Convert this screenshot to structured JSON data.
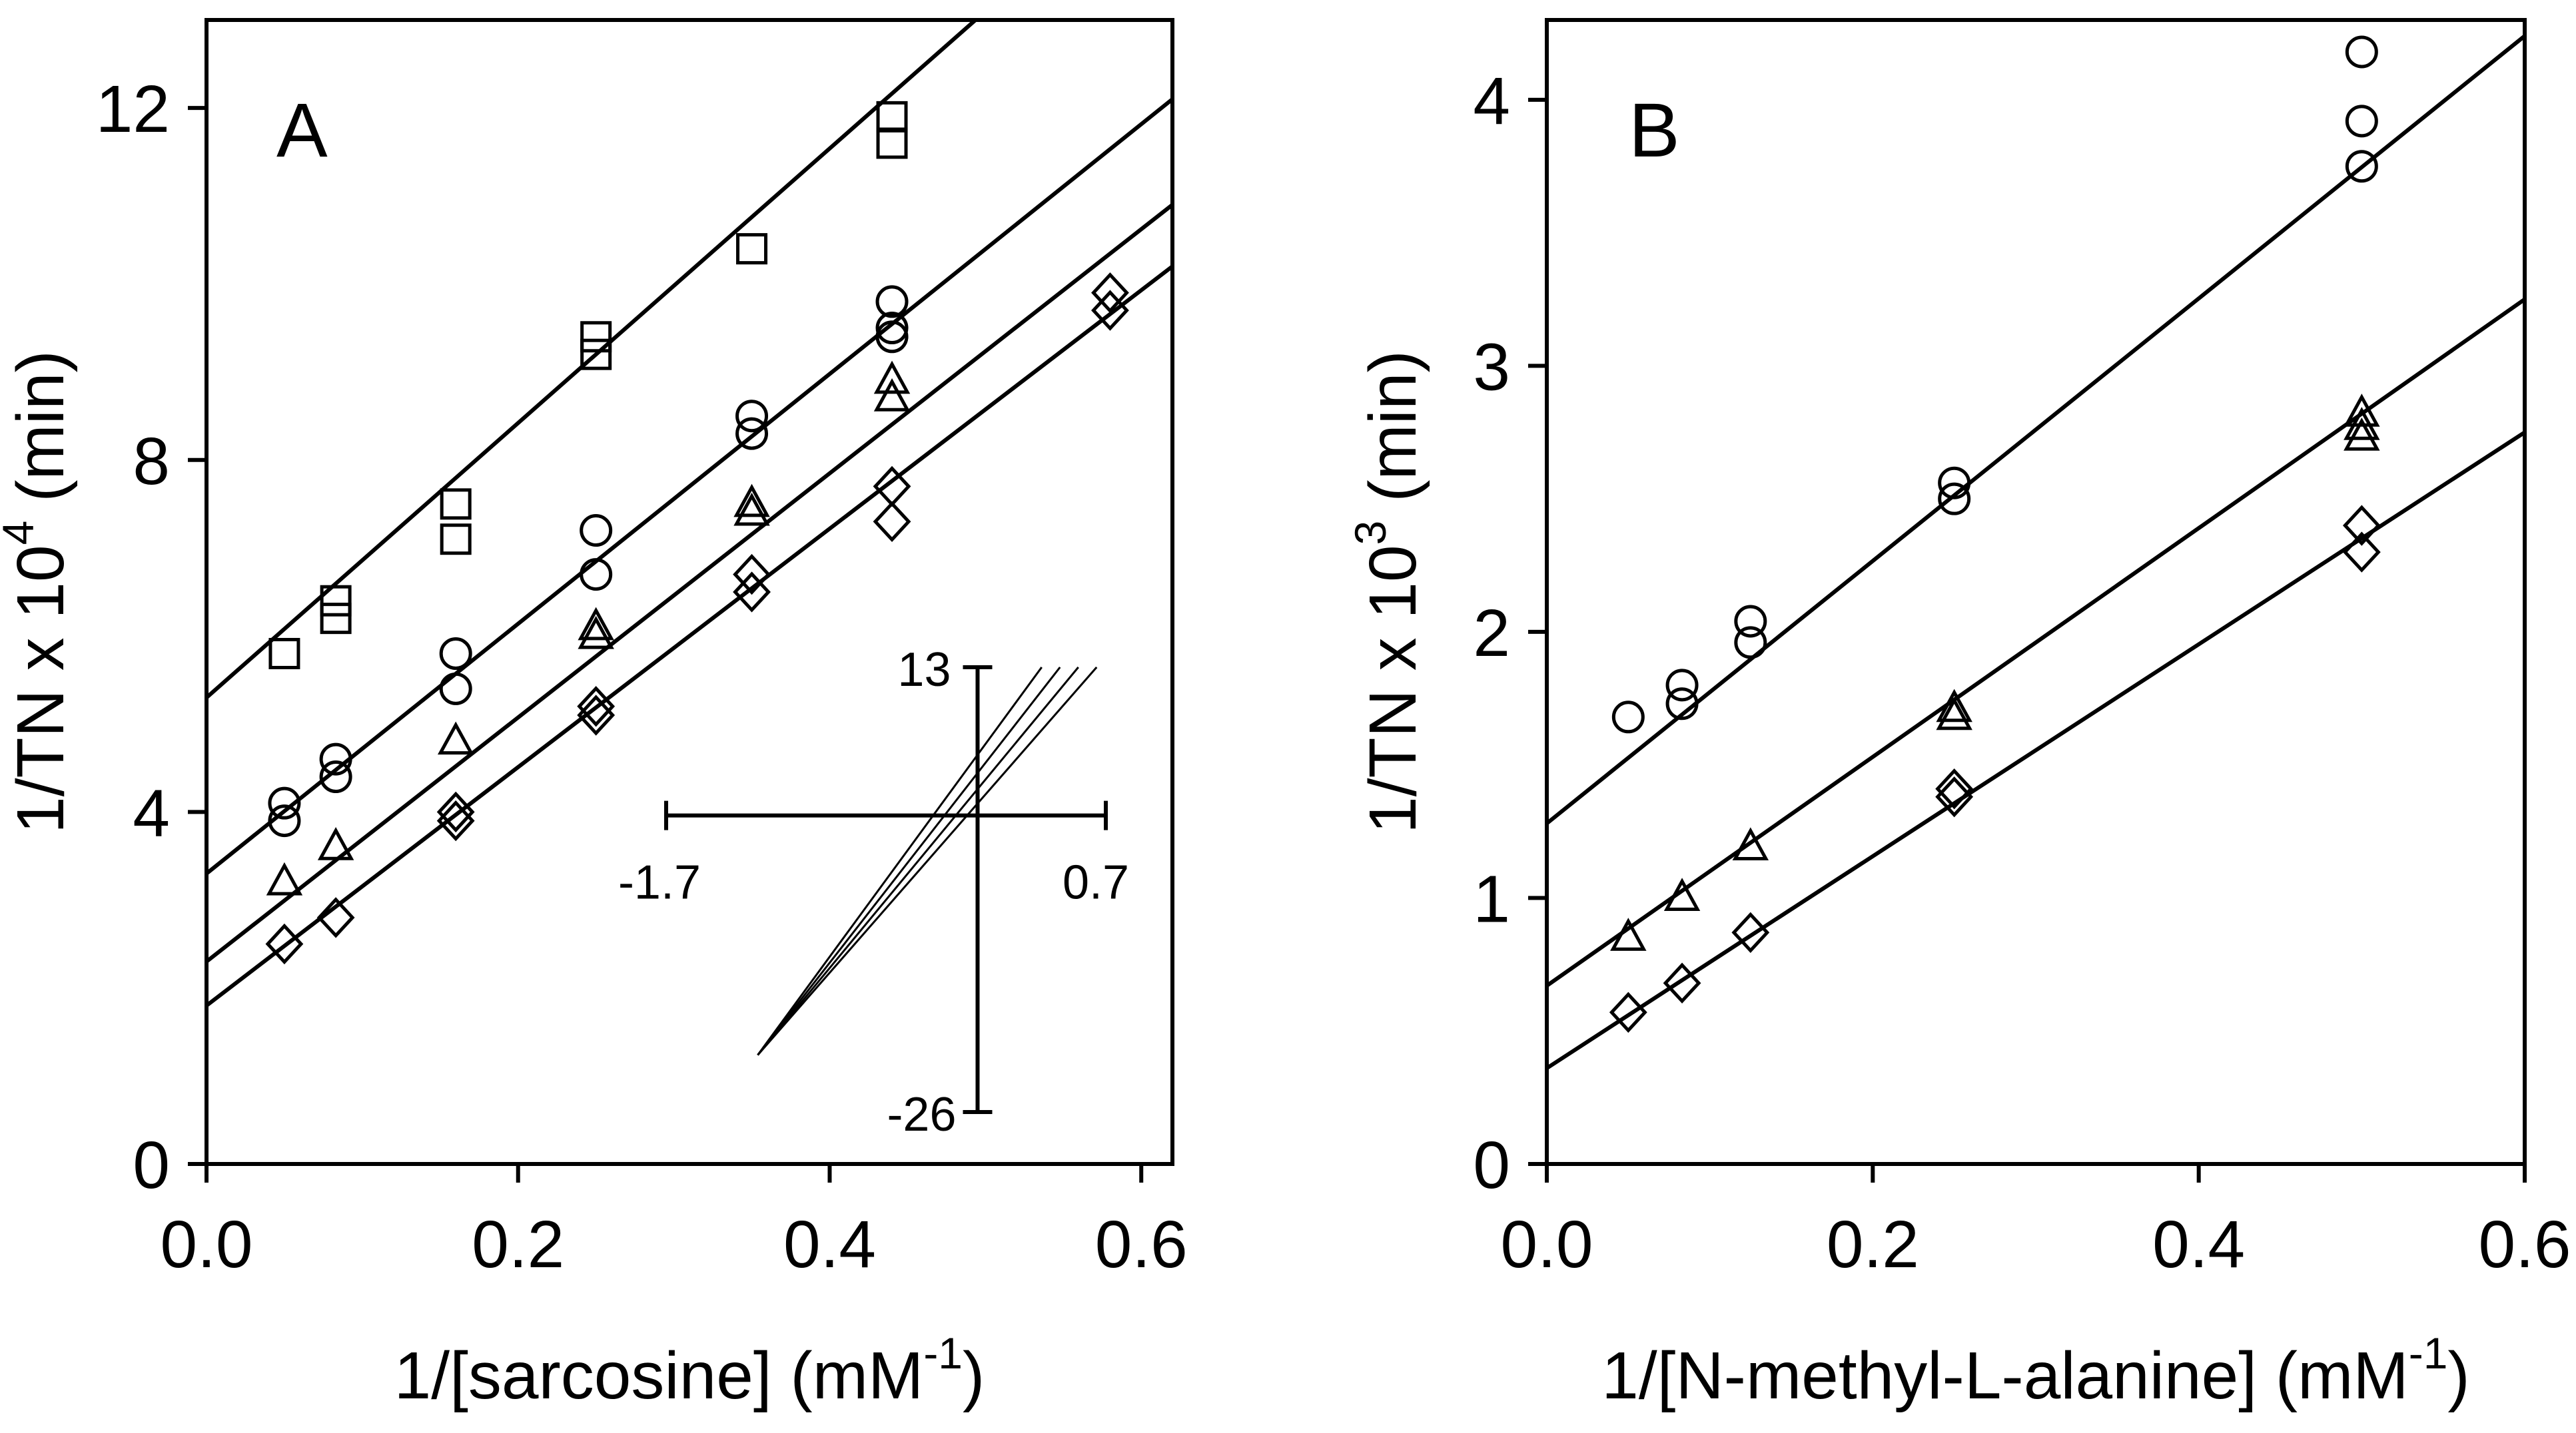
{
  "chart_data": [
    {
      "type": "scatter",
      "panel_label": "A",
      "xlabel": "1/[sarcosine] (mM",
      "xlabel_sup": "-1",
      "xlabel_end": ")",
      "ylabel": "1/TN x 10",
      "ylabel_sup": "4",
      "ylabel_end": " (min)",
      "xlim": [
        0,
        0.62
      ],
      "ylim": [
        0,
        13
      ],
      "xticks": [
        0.0,
        0.2,
        0.4,
        0.6
      ],
      "xtick_labels": [
        "0.0",
        "0.2",
        "0.4",
        "0.6"
      ],
      "yticks": [
        0,
        4,
        8,
        12
      ],
      "ytick_labels": [
        "0",
        "4",
        "8",
        "12"
      ],
      "grid": false,
      "series": [
        {
          "marker": "square",
          "points": [
            [
              0.05,
              5.8
            ],
            [
              0.083,
              6.4
            ],
            [
              0.083,
              6.2
            ],
            [
              0.16,
              7.5
            ],
            [
              0.16,
              7.1
            ],
            [
              0.25,
              9.4
            ],
            [
              0.25,
              9.2
            ],
            [
              0.35,
              10.4
            ],
            [
              0.44,
              11.9
            ],
            [
              0.44,
              11.6
            ]
          ],
          "line": [
            [
              0.0,
              5.3
            ],
            [
              0.5,
              13.1
            ]
          ]
        },
        {
          "marker": "circle",
          "points": [
            [
              0.05,
              4.1
            ],
            [
              0.05,
              3.9
            ],
            [
              0.083,
              4.6
            ],
            [
              0.083,
              4.4
            ],
            [
              0.16,
              5.8
            ],
            [
              0.16,
              5.4
            ],
            [
              0.25,
              7.2
            ],
            [
              0.25,
              6.7
            ],
            [
              0.35,
              8.5
            ],
            [
              0.35,
              8.3
            ],
            [
              0.44,
              9.8
            ],
            [
              0.44,
              9.5
            ],
            [
              0.44,
              9.4
            ]
          ],
          "line": [
            [
              0.0,
              3.3
            ],
            [
              0.62,
              12.1
            ]
          ]
        },
        {
          "marker": "triangle",
          "points": [
            [
              0.05,
              3.2
            ],
            [
              0.083,
              3.6
            ],
            [
              0.16,
              4.8
            ],
            [
              0.25,
              6.1
            ],
            [
              0.25,
              6.0
            ],
            [
              0.35,
              7.5
            ],
            [
              0.35,
              7.4
            ],
            [
              0.44,
              8.9
            ],
            [
              0.44,
              8.7
            ]
          ],
          "line": [
            [
              0.0,
              2.3
            ],
            [
              0.62,
              10.9
            ]
          ]
        },
        {
          "marker": "diamond",
          "points": [
            [
              0.05,
              2.5
            ],
            [
              0.083,
              2.8
            ],
            [
              0.16,
              3.9
            ],
            [
              0.16,
              4.0
            ],
            [
              0.25,
              5.2
            ],
            [
              0.25,
              5.1
            ],
            [
              0.35,
              6.7
            ],
            [
              0.35,
              6.5
            ],
            [
              0.44,
              7.7
            ],
            [
              0.44,
              7.3
            ],
            [
              0.58,
              9.9
            ],
            [
              0.58,
              9.7
            ]
          ],
          "line": [
            [
              0.0,
              1.8
            ],
            [
              0.62,
              10.2
            ]
          ]
        }
      ],
      "inset": {
        "xlim": [
          -1.7,
          0.7
        ],
        "ylim": [
          -26,
          13
        ],
        "x_labels": [
          "-1.7",
          "0.7"
        ],
        "y_labels": [
          "13",
          "-26"
        ],
        "lines": [
          [
            [
              -1.2,
              -21
            ],
            [
              0.35,
              13
            ]
          ],
          [
            [
              -1.2,
              -21
            ],
            [
              0.45,
              13
            ]
          ],
          [
            [
              -1.2,
              -21
            ],
            [
              0.55,
              13
            ]
          ],
          [
            [
              -1.2,
              -21
            ],
            [
              0.65,
              13
            ]
          ]
        ]
      }
    },
    {
      "type": "scatter",
      "panel_label": "B",
      "xlabel": "1/[N-methyl-L-alanine] (mM",
      "xlabel_sup": "-1",
      "xlabel_end": ")",
      "ylabel": "1/TN x 10",
      "ylabel_sup": "3",
      "ylabel_end": " (min)",
      "xlim": [
        0,
        0.6
      ],
      "ylim": [
        0,
        4.3
      ],
      "xticks": [
        0.0,
        0.2,
        0.4,
        0.6
      ],
      "xtick_labels": [
        "0.0",
        "0.2",
        "0.4",
        "0.6"
      ],
      "yticks": [
        0,
        1,
        2,
        3,
        4
      ],
      "ytick_labels": [
        "0",
        "1",
        "2",
        "3",
        "4"
      ],
      "grid": false,
      "series": [
        {
          "marker": "circle",
          "points": [
            [
              0.05,
              1.68
            ],
            [
              0.083,
              1.8
            ],
            [
              0.083,
              1.73
            ],
            [
              0.125,
              2.04
            ],
            [
              0.125,
              1.96
            ],
            [
              0.25,
              2.56
            ],
            [
              0.25,
              2.5
            ],
            [
              0.5,
              4.18
            ],
            [
              0.5,
              3.92
            ],
            [
              0.5,
              3.75
            ]
          ],
          "line": [
            [
              0.0,
              1.28
            ],
            [
              0.6,
              4.24
            ]
          ]
        },
        {
          "marker": "triangle",
          "points": [
            [
              0.05,
              0.85
            ],
            [
              0.083,
              1.0
            ],
            [
              0.125,
              1.19
            ],
            [
              0.25,
              1.71
            ],
            [
              0.25,
              1.68
            ],
            [
              0.5,
              2.82
            ],
            [
              0.5,
              2.77
            ],
            [
              0.5,
              2.73
            ]
          ],
          "line": [
            [
              0.0,
              0.67
            ],
            [
              0.6,
              3.25
            ]
          ]
        },
        {
          "marker": "diamond",
          "points": [
            [
              0.05,
              0.57
            ],
            [
              0.083,
              0.68
            ],
            [
              0.125,
              0.87
            ],
            [
              0.25,
              1.41
            ],
            [
              0.25,
              1.38
            ],
            [
              0.5,
              2.4
            ],
            [
              0.5,
              2.3
            ]
          ],
          "line": [
            [
              0.0,
              0.36
            ],
            [
              0.6,
              2.75
            ]
          ]
        }
      ]
    }
  ]
}
